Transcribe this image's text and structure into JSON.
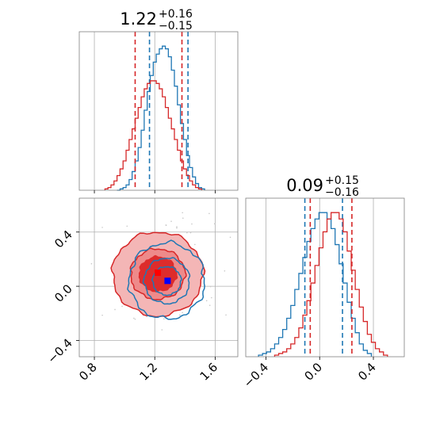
{
  "colors": {
    "red": "#d62728",
    "blue": "#1f77b4",
    "red_fill_light": "#f4b6b6",
    "red_fill_mid": "#ee8a8a",
    "red_fill_dark": "#dd2c2c",
    "marker_red": "#ff0000",
    "marker_blue": "#0000ff"
  },
  "titles": {
    "top_hist": {
      "value": "1.22",
      "plus": "+0.16",
      "minus": "−0.15"
    },
    "right_hist": {
      "value": "0.09",
      "plus": "+0.15",
      "minus": "−0.16"
    }
  },
  "chart_data": [
    {
      "type": "histogram",
      "name": "param-1-marginal",
      "x_ticks": [
        "0.8",
        "1.2",
        "1.6"
      ],
      "x_tick_values": [
        0.8,
        1.2,
        1.6
      ],
      "xlim": [
        0.7,
        1.75
      ],
      "grid": true,
      "series": [
        {
          "color": "blue",
          "quantiles": [
            1.165,
            1.225,
            1.42
          ],
          "bin_centers": [
            0.96,
            0.98,
            1.0,
            1.02,
            1.04,
            1.06,
            1.08,
            1.1,
            1.12,
            1.14,
            1.16,
            1.18,
            1.2,
            1.22,
            1.24,
            1.26,
            1.28,
            1.3,
            1.32,
            1.34,
            1.36,
            1.38,
            1.4,
            1.42,
            1.44,
            1.46,
            1.48,
            1.5,
            1.52
          ],
          "counts": [
            0,
            1,
            2,
            4,
            8,
            14,
            22,
            32,
            45,
            60,
            74,
            86,
            96,
            102,
            106,
            108,
            106,
            100,
            90,
            78,
            64,
            50,
            38,
            26,
            17,
            10,
            5,
            2,
            1
          ]
        },
        {
          "color": "red",
          "quantiles": [
            1.07,
            1.22,
            1.38
          ],
          "bin_centers": [
            0.88,
            0.9,
            0.92,
            0.94,
            0.96,
            0.98,
            1.0,
            1.02,
            1.04,
            1.06,
            1.08,
            1.1,
            1.12,
            1.14,
            1.16,
            1.18,
            1.2,
            1.22,
            1.24,
            1.26,
            1.28,
            1.3,
            1.32,
            1.34,
            1.36,
            1.38,
            1.4,
            1.42,
            1.44,
            1.46,
            1.48,
            1.5
          ],
          "counts": [
            1,
            2,
            4,
            7,
            11,
            16,
            22,
            30,
            38,
            46,
            54,
            62,
            70,
            76,
            80,
            82,
            82,
            80,
            76,
            70,
            62,
            54,
            46,
            38,
            30,
            22,
            16,
            11,
            7,
            4,
            2,
            1
          ]
        }
      ]
    },
    {
      "type": "histogram",
      "name": "param-2-marginal",
      "x_ticks": [
        "−0.4",
        "0.0",
        "0.4"
      ],
      "x_tick_values": [
        -0.4,
        0.0,
        0.4
      ],
      "xlim": [
        -0.55,
        0.63
      ],
      "grid": true,
      "series": [
        {
          "color": "blue",
          "quantiles": [
            -0.11,
            0.05,
            0.17
          ],
          "bin_centers": [
            -0.44,
            -0.41,
            -0.38,
            -0.35,
            -0.32,
            -0.29,
            -0.26,
            -0.23,
            -0.2,
            -0.17,
            -0.14,
            -0.11,
            -0.08,
            -0.05,
            -0.02,
            0.01,
            0.04,
            0.07,
            0.1,
            0.13,
            0.16,
            0.19,
            0.22,
            0.25,
            0.28,
            0.31,
            0.34,
            0.37
          ],
          "counts": [
            1,
            2,
            3,
            5,
            8,
            12,
            17,
            24,
            32,
            42,
            52,
            62,
            72,
            80,
            86,
            90,
            90,
            86,
            80,
            70,
            58,
            46,
            34,
            24,
            15,
            8,
            4,
            2
          ]
        },
        {
          "color": "red",
          "quantiles": [
            -0.07,
            0.09,
            0.24
          ],
          "bin_centers": [
            -0.32,
            -0.29,
            -0.26,
            -0.23,
            -0.2,
            -0.17,
            -0.14,
            -0.11,
            -0.08,
            -0.05,
            -0.02,
            0.01,
            0.04,
            0.07,
            0.1,
            0.13,
            0.16,
            0.19,
            0.22,
            0.25,
            0.28,
            0.31,
            0.34,
            0.37,
            0.4,
            0.43,
            0.46,
            0.49
          ],
          "counts": [
            1,
            2,
            3,
            5,
            8,
            12,
            18,
            26,
            35,
            46,
            57,
            68,
            78,
            86,
            90,
            90,
            86,
            78,
            66,
            54,
            42,
            31,
            22,
            14,
            9,
            5,
            3,
            1
          ]
        }
      ]
    },
    {
      "type": "contour",
      "name": "joint-posterior",
      "x_ticks": [
        "0.8",
        "1.2",
        "1.6"
      ],
      "x_tick_values": [
        0.8,
        1.2,
        1.6
      ],
      "y_ticks": [
        "−0.4",
        "0.0",
        "0.4"
      ],
      "y_tick_values": [
        -0.4,
        0.0,
        0.4
      ],
      "xlim": [
        0.7,
        1.75
      ],
      "ylim": [
        -0.52,
        0.65
      ],
      "grid": true,
      "red": {
        "center": [
          1.22,
          0.09
        ],
        "sigma": [
          0.15,
          0.155
        ]
      },
      "blue": {
        "center": [
          1.28,
          0.04
        ],
        "sigma": [
          0.125,
          0.14
        ]
      },
      "levels": [
        0.5,
        1.2,
        2.0
      ],
      "markers": [
        {
          "color": "marker_red",
          "x": 1.22,
          "y": 0.1
        },
        {
          "color": "marker_blue",
          "x": 1.285,
          "y": 0.04
        }
      ]
    }
  ]
}
